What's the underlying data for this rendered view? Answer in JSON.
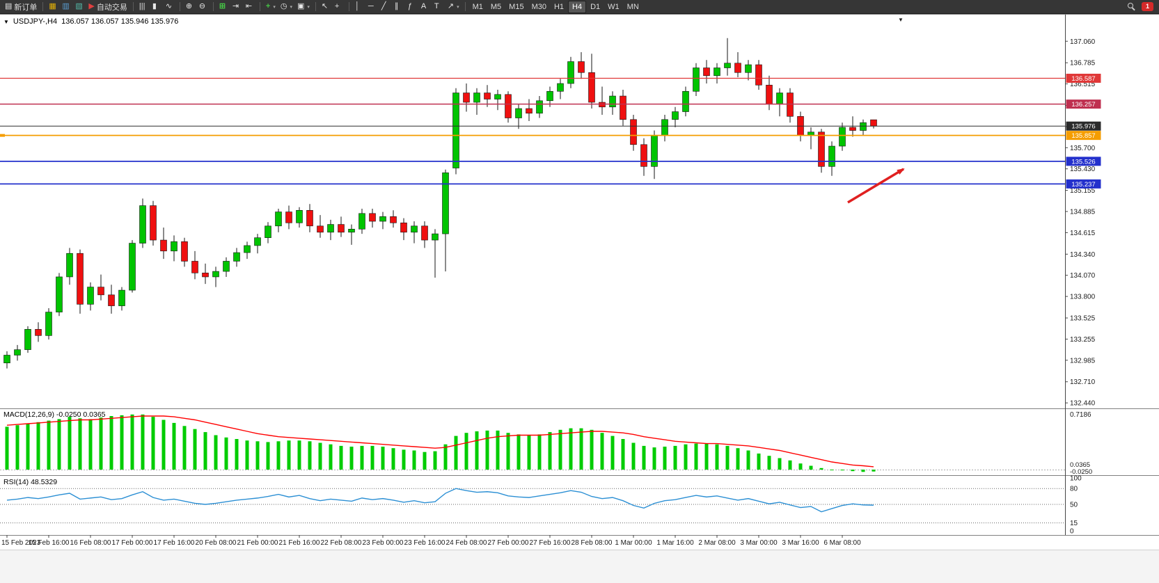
{
  "icons": {
    "new_order": "▤",
    "charts": "▦",
    "market_watch": "▥",
    "navigator": "▧",
    "autotrading": "▶",
    "bar_chart": "|||",
    "candle_chart": "▮",
    "line_chart": "∿",
    "zoom_in": "⊕",
    "zoom_out": "⊖",
    "tile_windows": "⊞",
    "auto_scroll": "⇥",
    "chart_shift": "⇤",
    "indicators": "+",
    "periods": "◷",
    "templates": "▣",
    "cursor": "↖",
    "crosshair": "+",
    "vline": "│",
    "hline": "─",
    "trendline": "╱",
    "channel": "∥",
    "fibonacci": "ƒ",
    "text": "A",
    "label": "T",
    "arrows": "↗",
    "dropdown": "▾",
    "marker_down": "▼"
  },
  "toolbar": {
    "new_order_label": "新订单",
    "autotrading_label": "自动交易",
    "timeframes": [
      "M1",
      "M5",
      "M15",
      "M30",
      "H1",
      "H4",
      "D1",
      "W1",
      "MN"
    ],
    "active_timeframe": "H4",
    "badge_count": "1"
  },
  "chart": {
    "title": "USDJPY-,H4",
    "ohlc": "136.057 136.057 135.946 135.976"
  },
  "macd_label": "MACD(12,26,9) -0.0250 0.0365",
  "rsi_label": "RSI(14) 48.5329",
  "chart_data": {
    "type": "candlestick",
    "symbol": "USDJPY-",
    "period": "H4",
    "grid": "off",
    "ohlc_current": {
      "open": 136.057,
      "high": 136.057,
      "low": 135.946,
      "close": 135.976
    },
    "y_range": [
      132.37,
      137.4
    ],
    "y_ticks": [
      137.06,
      136.785,
      136.515,
      136.24,
      135.97,
      135.7,
      135.43,
      135.155,
      134.885,
      134.615,
      134.34,
      134.07,
      133.8,
      133.525,
      133.255,
      132.985,
      132.71,
      132.44
    ],
    "x_labels": [
      "15 Feb 2023",
      "15 Feb 16:00",
      "16 Feb 08:00",
      "17 Feb 00:00",
      "17 Feb 16:00",
      "20 Feb 08:00",
      "21 Feb 00:00",
      "21 Feb 16:00",
      "22 Feb 08:00",
      "23 Feb 00:00",
      "23 Feb 16:00",
      "24 Feb 08:00",
      "27 Feb 00:00",
      "27 Feb 16:00",
      "28 Feb 08:00",
      "1 Mar 00:00",
      "1 Mar 16:00",
      "2 Mar 08:00",
      "3 Mar 00:00",
      "3 Mar 16:00",
      "6 Mar 08:00"
    ],
    "bars_per_label": 4,
    "colors": {
      "up": "#00c400",
      "down": "#ef1010",
      "wick": "#151515",
      "macd_hist": "#00cc00",
      "macd_signal": "#ff0000",
      "rsi": "#2b8fd4"
    },
    "candles": [
      [
        132.95,
        133.1,
        132.88,
        133.05
      ],
      [
        133.05,
        133.18,
        132.98,
        133.12
      ],
      [
        133.12,
        133.42,
        133.08,
        133.38
      ],
      [
        133.38,
        133.47,
        133.22,
        133.3
      ],
      [
        133.3,
        133.65,
        133.25,
        133.6
      ],
      [
        133.6,
        134.1,
        133.55,
        134.05
      ],
      [
        134.05,
        134.42,
        133.95,
        134.35
      ],
      [
        134.35,
        134.4,
        133.58,
        133.7
      ],
      [
        133.7,
        133.98,
        133.62,
        133.92
      ],
      [
        133.92,
        134.08,
        133.75,
        133.82
      ],
      [
        133.82,
        133.95,
        133.58,
        133.68
      ],
      [
        133.68,
        133.92,
        133.62,
        133.88
      ],
      [
        133.88,
        134.52,
        133.85,
        134.48
      ],
      [
        134.48,
        135.05,
        134.42,
        134.96
      ],
      [
        134.96,
        135.02,
        134.45,
        134.52
      ],
      [
        134.52,
        134.68,
        134.28,
        134.38
      ],
      [
        134.38,
        134.58,
        134.25,
        134.5
      ],
      [
        134.5,
        134.55,
        134.18,
        134.25
      ],
      [
        134.25,
        134.38,
        134.02,
        134.1
      ],
      [
        134.1,
        134.22,
        133.96,
        134.05
      ],
      [
        134.05,
        134.18,
        133.92,
        134.12
      ],
      [
        134.12,
        134.3,
        134.05,
        134.25
      ],
      [
        134.25,
        134.42,
        134.18,
        134.36
      ],
      [
        134.36,
        134.5,
        134.28,
        134.45
      ],
      [
        134.45,
        134.6,
        134.35,
        134.55
      ],
      [
        134.55,
        134.75,
        134.48,
        134.7
      ],
      [
        134.7,
        134.92,
        134.62,
        134.88
      ],
      [
        134.88,
        134.96,
        134.66,
        134.74
      ],
      [
        134.74,
        134.94,
        134.68,
        134.9
      ],
      [
        134.9,
        134.98,
        134.62,
        134.7
      ],
      [
        134.7,
        134.84,
        134.55,
        134.62
      ],
      [
        134.62,
        134.78,
        134.52,
        134.72
      ],
      [
        134.72,
        134.82,
        134.56,
        134.62
      ],
      [
        134.62,
        134.72,
        134.46,
        134.66
      ],
      [
        134.66,
        134.92,
        134.6,
        134.86
      ],
      [
        134.86,
        134.92,
        134.68,
        134.76
      ],
      [
        134.76,
        134.88,
        134.66,
        134.82
      ],
      [
        134.82,
        134.9,
        134.68,
        134.74
      ],
      [
        134.74,
        134.8,
        134.52,
        134.62
      ],
      [
        134.62,
        134.76,
        134.48,
        134.7
      ],
      [
        134.7,
        134.76,
        134.42,
        134.52
      ],
      [
        134.52,
        134.66,
        134.04,
        134.6
      ],
      [
        134.6,
        135.42,
        134.12,
        135.38
      ],
      [
        135.44,
        136.46,
        135.36,
        136.4
      ],
      [
        136.4,
        136.52,
        136.16,
        136.28
      ],
      [
        136.28,
        136.46,
        136.12,
        136.4
      ],
      [
        136.4,
        136.5,
        136.22,
        136.32
      ],
      [
        136.32,
        136.44,
        136.18,
        136.38
      ],
      [
        136.38,
        136.42,
        136.02,
        136.08
      ],
      [
        136.08,
        136.26,
        135.94,
        136.2
      ],
      [
        136.2,
        136.32,
        136.04,
        136.14
      ],
      [
        136.14,
        136.36,
        136.08,
        136.3
      ],
      [
        136.3,
        136.48,
        136.22,
        136.42
      ],
      [
        136.42,
        136.58,
        136.32,
        136.52
      ],
      [
        136.52,
        136.86,
        136.46,
        136.8
      ],
      [
        136.8,
        136.92,
        136.58,
        136.66
      ],
      [
        136.66,
        136.9,
        136.2,
        136.28
      ],
      [
        136.28,
        136.48,
        136.12,
        136.22
      ],
      [
        136.22,
        136.42,
        136.12,
        136.36
      ],
      [
        136.36,
        136.44,
        135.98,
        136.06
      ],
      [
        136.06,
        136.12,
        135.66,
        135.74
      ],
      [
        135.74,
        135.82,
        135.34,
        135.46
      ],
      [
        135.46,
        135.92,
        135.3,
        135.86
      ],
      [
        135.86,
        136.12,
        135.78,
        136.06
      ],
      [
        136.06,
        136.22,
        135.96,
        136.16
      ],
      [
        136.16,
        136.48,
        136.1,
        136.42
      ],
      [
        136.42,
        136.78,
        136.36,
        136.72
      ],
      [
        136.72,
        136.82,
        136.52,
        136.62
      ],
      [
        136.62,
        136.78,
        136.52,
        136.72
      ],
      [
        136.72,
        137.1,
        136.62,
        136.78
      ],
      [
        136.78,
        136.92,
        136.6,
        136.66
      ],
      [
        136.66,
        136.82,
        136.56,
        136.76
      ],
      [
        136.76,
        136.82,
        136.44,
        136.5
      ],
      [
        136.5,
        136.62,
        136.18,
        136.26
      ],
      [
        136.26,
        136.46,
        136.1,
        136.4
      ],
      [
        136.4,
        136.46,
        136.02,
        136.1
      ],
      [
        136.1,
        136.16,
        135.78,
        135.86
      ],
      [
        135.86,
        135.96,
        135.68,
        135.9
      ],
      [
        135.9,
        135.94,
        135.38,
        135.46
      ],
      [
        135.46,
        135.78,
        135.34,
        135.72
      ],
      [
        135.72,
        136.02,
        135.66,
        135.96
      ],
      [
        135.96,
        136.1,
        135.84,
        135.92
      ],
      [
        135.92,
        136.06,
        135.86,
        136.02
      ],
      [
        136.057,
        136.057,
        135.946,
        135.976
      ]
    ],
    "hlines": [
      {
        "price": 136.587,
        "label": "136.587",
        "color": "#e03838",
        "lw": 1.2
      },
      {
        "price": 136.257,
        "label": "136.257",
        "color": "#bf3050",
        "lw": 1.6
      },
      {
        "price": 135.976,
        "label": "135.976",
        "color": "#2b2b2b",
        "lw": 1
      },
      {
        "price": 135.857,
        "label": "135.857",
        "color": "#f59d00",
        "lw": 1.8,
        "edge_marker": true
      },
      {
        "price": 135.526,
        "label": "135.526",
        "color": "#2330cc",
        "lw": 1.8
      },
      {
        "price": 135.237,
        "label": "135.237",
        "color": "#2330cc",
        "lw": 1.8
      }
    ],
    "arrow": {
      "from": [
        1218,
        270
      ],
      "to": [
        1298,
        222
      ],
      "color": "#e02020",
      "width": 3.5
    },
    "macd": {
      "title": "MACD(12,26,9) -0.0250 0.0365",
      "y_max_label": "0.7186",
      "current_labels": [
        "0.0365",
        "-0.0250"
      ],
      "values": [
        0.56,
        0.58,
        0.6,
        0.62,
        0.64,
        0.66,
        0.69,
        0.67,
        0.66,
        0.68,
        0.7,
        0.71,
        0.72,
        0.72,
        0.69,
        0.65,
        0.61,
        0.57,
        0.53,
        0.49,
        0.45,
        0.42,
        0.4,
        0.38,
        0.37,
        0.36,
        0.37,
        0.38,
        0.38,
        0.37,
        0.35,
        0.33,
        0.31,
        0.3,
        0.31,
        0.31,
        0.3,
        0.28,
        0.26,
        0.25,
        0.23,
        0.24,
        0.33,
        0.44,
        0.48,
        0.5,
        0.51,
        0.51,
        0.48,
        0.46,
        0.45,
        0.46,
        0.49,
        0.52,
        0.54,
        0.54,
        0.52,
        0.48,
        0.44,
        0.4,
        0.35,
        0.31,
        0.29,
        0.3,
        0.31,
        0.33,
        0.34,
        0.34,
        0.33,
        0.31,
        0.28,
        0.25,
        0.21,
        0.18,
        0.15,
        0.12,
        0.08,
        0.05,
        0.02,
        0.0,
        -0.01,
        -0.02,
        -0.03,
        -0.025
      ],
      "signal": [
        0.58,
        0.59,
        0.6,
        0.61,
        0.62,
        0.63,
        0.64,
        0.65,
        0.65,
        0.66,
        0.67,
        0.68,
        0.69,
        0.7,
        0.7,
        0.7,
        0.69,
        0.67,
        0.65,
        0.62,
        0.59,
        0.56,
        0.53,
        0.5,
        0.47,
        0.45,
        0.43,
        0.42,
        0.41,
        0.4,
        0.39,
        0.38,
        0.37,
        0.36,
        0.35,
        0.34,
        0.33,
        0.32,
        0.31,
        0.3,
        0.29,
        0.28,
        0.29,
        0.32,
        0.35,
        0.38,
        0.41,
        0.43,
        0.44,
        0.45,
        0.45,
        0.45,
        0.46,
        0.47,
        0.48,
        0.49,
        0.5,
        0.5,
        0.49,
        0.48,
        0.46,
        0.43,
        0.41,
        0.39,
        0.37,
        0.36,
        0.35,
        0.34,
        0.34,
        0.33,
        0.32,
        0.31,
        0.29,
        0.27,
        0.25,
        0.22,
        0.19,
        0.16,
        0.13,
        0.1,
        0.08,
        0.06,
        0.05,
        0.0365
      ]
    },
    "rsi": {
      "title": "RSI(14) 48.5329",
      "levels": [
        100,
        80,
        50,
        15,
        0
      ],
      "values": [
        58,
        60,
        63,
        61,
        64,
        68,
        71,
        60,
        62,
        64,
        59,
        61,
        68,
        74,
        63,
        58,
        60,
        56,
        52,
        50,
        52,
        55,
        58,
        60,
        62,
        65,
        69,
        64,
        67,
        61,
        57,
        60,
        58,
        56,
        62,
        59,
        61,
        58,
        54,
        57,
        53,
        55,
        71,
        80,
        76,
        73,
        74,
        72,
        66,
        64,
        63,
        66,
        69,
        72,
        76,
        73,
        65,
        61,
        63,
        57,
        48,
        43,
        52,
        57,
        59,
        63,
        67,
        64,
        66,
        62,
        58,
        61,
        56,
        51,
        54,
        49,
        44,
        46,
        36,
        42,
        48,
        51,
        49,
        48.53
      ]
    }
  }
}
